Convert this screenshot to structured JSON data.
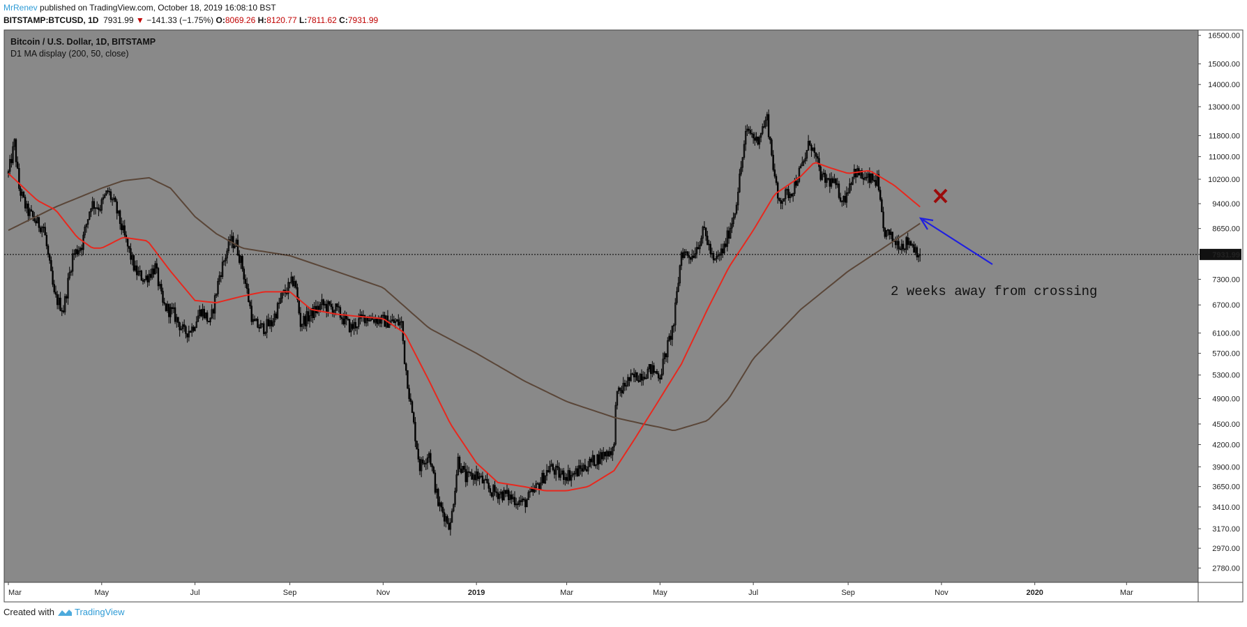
{
  "header": {
    "author": "MrRenev",
    "published": "published on TradingView.com, October 18, 2019 16:08:10 BST",
    "symbol": "BITSTAMP:BTCUSD, 1D",
    "last": "7931.99",
    "arrow": "▼",
    "change": "−141.33 (−1.75%)",
    "o_label": "O:",
    "o_value": "8069.26",
    "h_label": "H:",
    "h_value": "8120.77",
    "l_label": "L:",
    "l_value": "7811.62",
    "c_label": "C:",
    "c_value": "7931.99"
  },
  "footer": {
    "created_with": "Created with",
    "brand": "TradingView"
  },
  "colors": {
    "plot_bg": "#898989",
    "candle": "#000000",
    "ma50": "#e8281e",
    "ma200": "#5a4638",
    "arrow": "#1f1fe0",
    "cross": "#9b0b0b",
    "price_line": "#000000"
  },
  "chart_data": {
    "type": "candlestick",
    "title": "Bitcoin / U.S. Dollar, 1D, BITSTAMP",
    "subtitle": "D1 MA display (200, 50, close)",
    "y_scale": "log",
    "y_ticks": [
      16500,
      15000,
      14000,
      13000,
      11800,
      11000,
      10200,
      9400,
      8650,
      7931.99,
      7300,
      6700,
      6100,
      5700,
      5300,
      4900,
      4500,
      4200,
      3900,
      3650,
      3410,
      3170,
      2970,
      2780
    ],
    "y_tick_labels": [
      "16500.00",
      "15000.00",
      "14000.00",
      "13000.00",
      "11800.00",
      "11000.00",
      "10200.00",
      "9400.00",
      "8650.00",
      "7931.99",
      "7300.00",
      "6700.00",
      "6100.00",
      "5700.00",
      "5300.00",
      "4900.00",
      "4500.00",
      "4200.00",
      "3900.00",
      "3650.00",
      "3410.00",
      "3170.00",
      "2970.00",
      "2780.00"
    ],
    "x_ticks": [
      "Mar",
      "May",
      "Jul",
      "Sep",
      "Nov",
      "2019",
      "Mar",
      "May",
      "Jul",
      "Sep",
      "Nov",
      "2020",
      "Mar"
    ],
    "x_tick_dates": [
      "2018-03-01",
      "2018-05-01",
      "2018-07-01",
      "2018-09-01",
      "2018-11-01",
      "2019-01-01",
      "2019-03-01",
      "2019-05-01",
      "2019-07-01",
      "2019-09-01",
      "2019-11-01",
      "2020-01-01",
      "2020-03-01"
    ],
    "x_range": [
      "2018-03-01",
      "2020-04-15"
    ],
    "ylim": [
      2650,
      16800
    ],
    "last_price": 7931.99,
    "close_keypoints": [
      [
        "2018-03-01",
        10400
      ],
      [
        "2018-03-05",
        11500
      ],
      [
        "2018-03-08",
        9900
      ],
      [
        "2018-03-13",
        9200
      ],
      [
        "2018-03-20",
        8800
      ],
      [
        "2018-03-24",
        8700
      ],
      [
        "2018-03-31",
        6900
      ],
      [
        "2018-04-06",
        6600
      ],
      [
        "2018-04-12",
        7900
      ],
      [
        "2018-04-18",
        8200
      ],
      [
        "2018-04-24",
        9400
      ],
      [
        "2018-04-30",
        9300
      ],
      [
        "2018-05-05",
        9800
      ],
      [
        "2018-05-10",
        9300
      ],
      [
        "2018-05-16",
        8400
      ],
      [
        "2018-05-23",
        7500
      ],
      [
        "2018-05-29",
        7300
      ],
      [
        "2018-06-05",
        7600
      ],
      [
        "2018-06-10",
        6700
      ],
      [
        "2018-06-17",
        6500
      ],
      [
        "2018-06-24",
        6100
      ],
      [
        "2018-06-29",
        6200
      ],
      [
        "2018-07-05",
        6600
      ],
      [
        "2018-07-11",
        6300
      ],
      [
        "2018-07-17",
        7400
      ],
      [
        "2018-07-24",
        8300
      ],
      [
        "2018-07-28",
        8200
      ],
      [
        "2018-08-01",
        7600
      ],
      [
        "2018-08-08",
        6300
      ],
      [
        "2018-08-14",
        6200
      ],
      [
        "2018-08-20",
        6300
      ],
      [
        "2018-08-27",
        6900
      ],
      [
        "2018-09-04",
        7300
      ],
      [
        "2018-09-08",
        6300
      ],
      [
        "2018-09-15",
        6500
      ],
      [
        "2018-09-22",
        6700
      ],
      [
        "2018-10-01",
        6600
      ],
      [
        "2018-10-11",
        6200
      ],
      [
        "2018-10-20",
        6450
      ],
      [
        "2018-11-01",
        6350
      ],
      [
        "2018-11-13",
        6300
      ],
      [
        "2018-11-15",
        5600
      ],
      [
        "2018-11-19",
        4800
      ],
      [
        "2018-11-25",
        3900
      ],
      [
        "2018-12-01",
        4100
      ],
      [
        "2018-12-07",
        3450
      ],
      [
        "2018-12-15",
        3200
      ],
      [
        "2018-12-20",
        4000
      ],
      [
        "2018-12-25",
        3750
      ],
      [
        "2019-01-01",
        3800
      ],
      [
        "2019-01-10",
        3600
      ],
      [
        "2019-01-20",
        3550
      ],
      [
        "2019-02-01",
        3450
      ],
      [
        "2019-02-08",
        3600
      ],
      [
        "2019-02-18",
        3900
      ],
      [
        "2019-02-24",
        3800
      ],
      [
        "2019-03-05",
        3800
      ],
      [
        "2019-03-20",
        4000
      ],
      [
        "2019-04-01",
        4150
      ],
      [
        "2019-04-02",
        4900
      ],
      [
        "2019-04-10",
        5200
      ],
      [
        "2019-04-25",
        5400
      ],
      [
        "2019-05-01",
        5300
      ],
      [
        "2019-05-10",
        6300
      ],
      [
        "2019-05-15",
        8000
      ],
      [
        "2019-05-22",
        7900
      ],
      [
        "2019-05-30",
        8600
      ],
      [
        "2019-06-05",
        7700
      ],
      [
        "2019-06-12",
        8100
      ],
      [
        "2019-06-19",
        9200
      ],
      [
        "2019-06-26",
        11800
      ],
      [
        "2019-06-28",
        12000
      ],
      [
        "2019-07-03",
        11600
      ],
      [
        "2019-07-10",
        12500
      ],
      [
        "2019-07-17",
        9500
      ],
      [
        "2019-07-26",
        9800
      ],
      [
        "2019-08-03",
        10800
      ],
      [
        "2019-08-07",
        11600
      ],
      [
        "2019-08-15",
        10200
      ],
      [
        "2019-08-22",
        10100
      ],
      [
        "2019-08-29",
        9500
      ],
      [
        "2019-09-05",
        10500
      ],
      [
        "2019-09-12",
        10200
      ],
      [
        "2019-09-20",
        10150
      ],
      [
        "2019-09-24",
        8600
      ],
      [
        "2019-10-01",
        8300
      ],
      [
        "2019-10-07",
        8200
      ],
      [
        "2019-10-11",
        8300
      ],
      [
        "2019-10-18",
        7931.99
      ]
    ],
    "series": [
      {
        "name": "MA 200",
        "values": [
          [
            "2018-03-01",
            8600
          ],
          [
            "2018-04-01",
            9300
          ],
          [
            "2018-05-01",
            9900
          ],
          [
            "2018-05-15",
            10150
          ],
          [
            "2018-06-01",
            10250
          ],
          [
            "2018-06-15",
            9900
          ],
          [
            "2018-07-01",
            9000
          ],
          [
            "2018-07-15",
            8500
          ],
          [
            "2018-08-01",
            8100
          ],
          [
            "2018-09-01",
            7900
          ],
          [
            "2018-10-01",
            7500
          ],
          [
            "2018-11-01",
            7100
          ],
          [
            "2018-12-01",
            6200
          ],
          [
            "2019-01-01",
            5700
          ],
          [
            "2019-02-01",
            5200
          ],
          [
            "2019-03-01",
            4850
          ],
          [
            "2019-04-01",
            4600
          ],
          [
            "2019-04-20",
            4500
          ],
          [
            "2019-05-01",
            4450
          ],
          [
            "2019-05-10",
            4400
          ],
          [
            "2019-06-01",
            4550
          ],
          [
            "2019-06-15",
            4900
          ],
          [
            "2019-07-01",
            5600
          ],
          [
            "2019-08-01",
            6600
          ],
          [
            "2019-09-01",
            7500
          ],
          [
            "2019-10-01",
            8300
          ],
          [
            "2019-10-18",
            8800
          ]
        ]
      },
      {
        "name": "MA 50",
        "values": [
          [
            "2018-03-01",
            10400
          ],
          [
            "2018-03-20",
            9500
          ],
          [
            "2018-04-01",
            9200
          ],
          [
            "2018-04-15",
            8400
          ],
          [
            "2018-04-25",
            8100
          ],
          [
            "2018-05-01",
            8100
          ],
          [
            "2018-05-15",
            8400
          ],
          [
            "2018-05-31",
            8300
          ],
          [
            "2018-06-15",
            7500
          ],
          [
            "2018-07-01",
            6800
          ],
          [
            "2018-07-15",
            6750
          ],
          [
            "2018-08-01",
            6900
          ],
          [
            "2018-08-15",
            7000
          ],
          [
            "2018-09-01",
            7000
          ],
          [
            "2018-09-15",
            6600
          ],
          [
            "2018-10-01",
            6500
          ],
          [
            "2018-10-15",
            6450
          ],
          [
            "2018-11-01",
            6400
          ],
          [
            "2018-11-15",
            6100
          ],
          [
            "2018-12-01",
            5200
          ],
          [
            "2018-12-15",
            4500
          ],
          [
            "2019-01-01",
            3950
          ],
          [
            "2019-01-15",
            3700
          ],
          [
            "2019-02-01",
            3650
          ],
          [
            "2019-02-15",
            3600
          ],
          [
            "2019-03-01",
            3600
          ],
          [
            "2019-03-15",
            3650
          ],
          [
            "2019-04-01",
            3850
          ],
          [
            "2019-04-15",
            4300
          ],
          [
            "2019-05-01",
            4900
          ],
          [
            "2019-05-15",
            5500
          ],
          [
            "2019-06-01",
            6600
          ],
          [
            "2019-06-15",
            7600
          ],
          [
            "2019-07-01",
            8600
          ],
          [
            "2019-07-15",
            9700
          ],
          [
            "2019-08-01",
            10300
          ],
          [
            "2019-08-10",
            10800
          ],
          [
            "2019-08-20",
            10600
          ],
          [
            "2019-09-01",
            10400
          ],
          [
            "2019-09-15",
            10500
          ],
          [
            "2019-10-01",
            10000
          ],
          [
            "2019-10-18",
            9300
          ]
        ]
      }
    ],
    "annotations": [
      {
        "type": "text",
        "text": "2 weeks away from crossing"
      },
      {
        "type": "cross-mark"
      },
      {
        "type": "arrow"
      }
    ]
  }
}
